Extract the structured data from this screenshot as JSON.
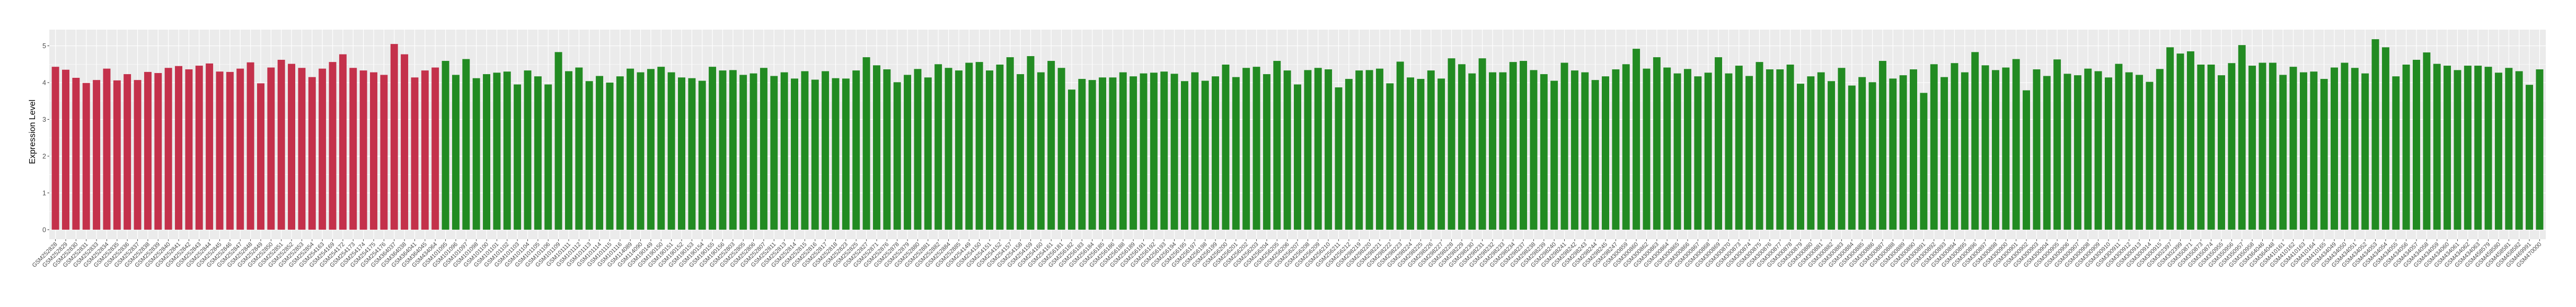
{
  "chart_data": {
    "type": "bar",
    "title": "",
    "xlabel": "",
    "ylabel": "Expression Level",
    "ylim": [
      -0.26,
      5.44
    ],
    "yticks": [
      0,
      1,
      2,
      3,
      4,
      5
    ],
    "grid": true,
    "legend": "none",
    "colors": [
      "#C4314B",
      "#228B22"
    ],
    "categories": [
      "GSM252828",
      "GSM252829",
      "GSM252830",
      "GSM252831",
      "GSM252833",
      "GSM252834",
      "GSM252835",
      "GSM252836",
      "GSM252837",
      "GSM252838",
      "GSM252839",
      "GSM252840",
      "GSM252841",
      "GSM252842",
      "GSM252843",
      "GSM252844",
      "GSM252845",
      "GSM252846",
      "GSM252847",
      "GSM252848",
      "GSM252849",
      "GSM252850",
      "GSM252851",
      "GSM252852",
      "GSM252853",
      "GSM252854",
      "GSM254163",
      "GSM254169",
      "GSM254172",
      "GSM254173",
      "GSM254174",
      "GSM254175",
      "GSM254176",
      "GSM364037",
      "GSM364038",
      "GSM364041",
      "GSM364045",
      "GSM434064",
      "GSM101095",
      "GSM101096",
      "GSM101097",
      "GSM101098",
      "GSM101100",
      "GSM101101",
      "GSM101102",
      "GSM101103",
      "GSM101104",
      "GSM101105",
      "GSM101106",
      "GSM101109",
      "GSM101111",
      "GSM101112",
      "GSM101113",
      "GSM101114",
      "GSM101115",
      "GSM101116",
      "GSM114089",
      "GSM114090",
      "GSM190149",
      "GSM190150",
      "GSM190151",
      "GSM190152",
      "GSM190153",
      "GSM190154",
      "GSM190155",
      "GSM190156",
      "GSM252803",
      "GSM252805",
      "GSM252806",
      "GSM252807",
      "GSM252811",
      "GSM252813",
      "GSM252814",
      "GSM252815",
      "GSM252816",
      "GSM252817",
      "GSM252818",
      "GSM252823",
      "GSM252825",
      "GSM252827",
      "GSM252871",
      "GSM252876",
      "GSM252878",
      "GSM252879",
      "GSM252880",
      "GSM252881",
      "GSM252882",
      "GSM252884",
      "GSM252885",
      "GSM254149",
      "GSM254150",
      "GSM254151",
      "GSM254152",
      "GSM254157",
      "GSM254158",
      "GSM254159",
      "GSM254160",
      "GSM254161",
      "GSM256181",
      "GSM256182",
      "GSM256183",
      "GSM256184",
      "GSM256185",
      "GSM256186",
      "GSM256188",
      "GSM256189",
      "GSM256191",
      "GSM256192",
      "GSM256193",
      "GSM256194",
      "GSM256195",
      "GSM256197",
      "GSM256198",
      "GSM256199",
      "GSM256200",
      "GSM256201",
      "GSM256202",
      "GSM256203",
      "GSM256204",
      "GSM256205",
      "GSM256206",
      "GSM256207",
      "GSM256208",
      "GSM256209",
      "GSM256210",
      "GSM256211",
      "GSM256212",
      "GSM298219",
      "GSM298220",
      "GSM298221",
      "GSM298222",
      "GSM298223",
      "GSM298224",
      "GSM298225",
      "GSM298226",
      "GSM298227",
      "GSM298228",
      "GSM298229",
      "GSM298230",
      "GSM298231",
      "GSM298232",
      "GSM298233",
      "GSM298234",
      "GSM298237",
      "GSM298238",
      "GSM298239",
      "GSM298240",
      "GSM298241",
      "GSM298242",
      "GSM298243",
      "GSM298244",
      "GSM298245",
      "GSM298247",
      "GSM300859",
      "GSM300860",
      "GSM300862",
      "GSM300863",
      "GSM300864",
      "GSM300865",
      "GSM300866",
      "GSM300867",
      "GSM300868",
      "GSM300869",
      "GSM300870",
      "GSM300873",
      "GSM300874",
      "GSM300875",
      "GSM300876",
      "GSM300877",
      "GSM300878",
      "GSM300879",
      "GSM300880",
      "GSM300881",
      "GSM300882",
      "GSM300883",
      "GSM300884",
      "GSM300885",
      "GSM300886",
      "GSM300887",
      "GSM300888",
      "GSM300889",
      "GSM300890",
      "GSM300891",
      "GSM300892",
      "GSM300893",
      "GSM300894",
      "GSM300895",
      "GSM300896",
      "GSM300897",
      "GSM300898",
      "GSM300900",
      "GSM300901",
      "GSM300902",
      "GSM300903",
      "GSM300904",
      "GSM300905",
      "GSM300906",
      "GSM300907",
      "GSM300908",
      "GSM300909",
      "GSM300910",
      "GSM300911",
      "GSM300912",
      "GSM300913",
      "GSM300914",
      "GSM300915",
      "GSM302397",
      "GSM302399",
      "GSM350871",
      "GSM350873",
      "GSM350874",
      "GSM350955",
      "GSM350956",
      "GSM350957",
      "GSM350958",
      "GSM364046",
      "GSM364048",
      "GSM410161",
      "GSM410162",
      "GSM410163",
      "GSM410164",
      "GSM410165",
      "GSM434049",
      "GSM434050",
      "GSM434051",
      "GSM434052",
      "GSM434053",
      "GSM434054",
      "GSM434055",
      "GSM434056",
      "GSM434057",
      "GSM434058",
      "GSM434059",
      "GSM434060",
      "GSM434061",
      "GSM434062",
      "GSM434063",
      "GSM458579",
      "GSM458580",
      "GSM458581",
      "GSM458582",
      "GSM469991",
      "GSM470000"
    ],
    "values": [
      4.43,
      4.35,
      4.13,
      3.99,
      4.07,
      4.38,
      4.06,
      4.23,
      4.07,
      4.29,
      4.26,
      4.4,
      4.45,
      4.36,
      4.46,
      4.52,
      4.3,
      4.29,
      4.38,
      4.55,
      3.98,
      4.41,
      4.62,
      4.51,
      4.4,
      4.15,
      4.38,
      4.56,
      4.77,
      4.4,
      4.33,
      4.28,
      4.21,
      5.05,
      4.77,
      4.14,
      4.33,
      4.41,
      4.59,
      4.21,
      4.64,
      4.12,
      4.23,
      4.27,
      4.3,
      3.95,
      4.33,
      4.17,
      3.95,
      4.83,
      4.31,
      4.41,
      4.04,
      4.18,
      4.0,
      4.17,
      4.38,
      4.28,
      4.37,
      4.43,
      4.28,
      4.14,
      4.12,
      4.05,
      4.43,
      4.33,
      4.34,
      4.21,
      4.25,
      4.4,
      4.18,
      4.28,
      4.11,
      4.31,
      4.08,
      4.31,
      4.12,
      4.11,
      4.33,
      4.69,
      4.47,
      4.36,
      4.01,
      4.21,
      4.37,
      4.14,
      4.5,
      4.4,
      4.33,
      4.54,
      4.56,
      4.33,
      4.49,
      4.69,
      4.23,
      4.72,
      4.28,
      4.59,
      4.4,
      3.81,
      4.1,
      4.07,
      4.14,
      4.14,
      4.28,
      4.17,
      4.25,
      4.27,
      4.3,
      4.24,
      4.04,
      4.28,
      4.05,
      4.17,
      4.49,
      4.15,
      4.4,
      4.43,
      4.23,
      4.59,
      4.33,
      3.95,
      4.34,
      4.4,
      4.36,
      3.87,
      4.1,
      4.33,
      4.34,
      4.38,
      3.98,
      4.57,
      4.14,
      4.1,
      4.33,
      4.11,
      4.66,
      4.5,
      4.25,
      4.66,
      4.28,
      4.28,
      4.56,
      4.59,
      4.34,
      4.23,
      4.05,
      4.54,
      4.33,
      4.28,
      4.07,
      4.17,
      4.36,
      4.5,
      4.92,
      4.38,
      4.69,
      4.41,
      4.25,
      4.37,
      4.17,
      4.27,
      4.69,
      4.25,
      4.46,
      4.18,
      4.56,
      4.36,
      4.36,
      4.49,
      3.97,
      4.17,
      4.28,
      4.04,
      4.4,
      3.92,
      4.15,
      4.01,
      4.59,
      4.11,
      4.2,
      4.36,
      3.72,
      4.5,
      4.15,
      4.53,
      4.28,
      4.83,
      4.47,
      4.34,
      4.41,
      4.64,
      3.79,
      4.36,
      4.18,
      4.63,
      4.24,
      4.2,
      4.38,
      4.31,
      4.14,
      4.51,
      4.28,
      4.21,
      4.02,
      4.37,
      4.96,
      4.79,
      4.85,
      4.49,
      4.49,
      4.2,
      4.53,
      5.02,
      4.46,
      4.54,
      4.54,
      4.21,
      4.43,
      4.28,
      4.3,
      4.1,
      4.41,
      4.54,
      4.4,
      4.25,
      5.18,
      4.96,
      4.17,
      4.49,
      4.62,
      4.82,
      4.51,
      4.46,
      4.34,
      4.46,
      4.46,
      4.43,
      4.27,
      4.4,
      4.31,
      3.94,
      4.36
    ],
    "color_group_first_count": 38
  }
}
